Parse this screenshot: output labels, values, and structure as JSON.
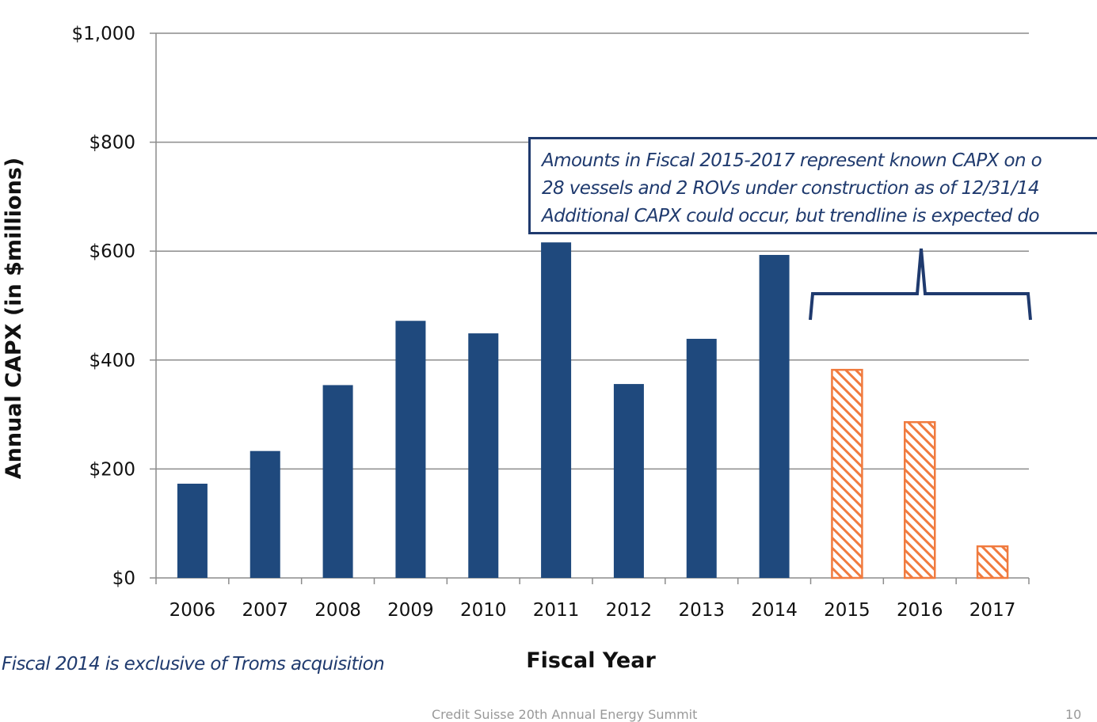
{
  "colors": {
    "actual": "#1f497d",
    "projected": "#f07b3f",
    "accent": "#1f3a6e"
  },
  "annotation": {
    "line1": "Amounts in Fiscal 2015-2017 represent known CAPX on o",
    "line2": "28 vessels and 2 ROVs under construction as of 12/31/14",
    "line3": "Additional  CAPX could occur, but trendline is expected do"
  },
  "footnote": "Fiscal 2014 is exclusive of Troms acquisition",
  "footer": "Credit Suisse 20th Annual Energy Summit",
  "page_number": "10",
  "chart_data": {
    "type": "bar",
    "title": "",
    "xlabel": "Fiscal Year",
    "ylabel": "Annual CAPX (in $millions)",
    "ylim": [
      0,
      1000
    ],
    "yticks": [
      "$0",
      "$200",
      "$400",
      "$600",
      "$800",
      "$1,000"
    ],
    "ytick_values": [
      0,
      200,
      400,
      600,
      800,
      1000
    ],
    "grid": true,
    "categories": [
      "2006",
      "2007",
      "2008",
      "2009",
      "2010",
      "2011",
      "2012",
      "2013",
      "2014",
      "2015",
      "2016",
      "2017"
    ],
    "series": [
      {
        "values": [
          173,
          233,
          354,
          472,
          449,
          616,
          356,
          439,
          593,
          null,
          null,
          null
        ],
        "style": "solid"
      },
      {
        "values": [
          null,
          null,
          null,
          null,
          null,
          null,
          null,
          null,
          null,
          382,
          286,
          58
        ],
        "style": "hatched"
      }
    ]
  }
}
